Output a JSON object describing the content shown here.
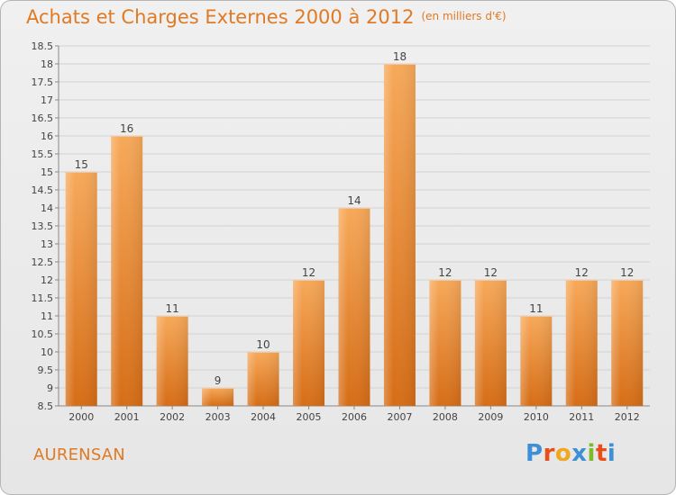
{
  "header": {
    "title": "Achats et Charges Externes 2000 à 2012",
    "unit": "(en milliers d'€)"
  },
  "footer": {
    "place": "AURENSAN",
    "logo_letters": [
      "P",
      "r",
      "o",
      "x",
      "i",
      "t",
      "i"
    ],
    "logo_colors": [
      "#3d8fd6",
      "#e84e1b",
      "#f2a81d",
      "#3d8fd6",
      "#7dbb2a",
      "#e84e1b",
      "#3d8fd6"
    ]
  },
  "chart_data": {
    "type": "bar",
    "categories": [
      "2000",
      "2001",
      "2002",
      "2003",
      "2004",
      "2005",
      "2006",
      "2007",
      "2008",
      "2009",
      "2010",
      "2011",
      "2012"
    ],
    "values": [
      15,
      16,
      11,
      9,
      10,
      12,
      14,
      18,
      12,
      12,
      11,
      12,
      12
    ],
    "ylim": [
      8.5,
      18.5
    ],
    "yticks": [
      "8.5",
      "9",
      "9.5",
      "10",
      "10.5",
      "11",
      "11.5",
      "12",
      "12.5",
      "13",
      "13.5",
      "14",
      "14.5",
      "15",
      "15.5",
      "16",
      "16.5",
      "17",
      "17.5",
      "18",
      "18.5"
    ],
    "grid": true,
    "bar_color": "#e8842c"
  }
}
